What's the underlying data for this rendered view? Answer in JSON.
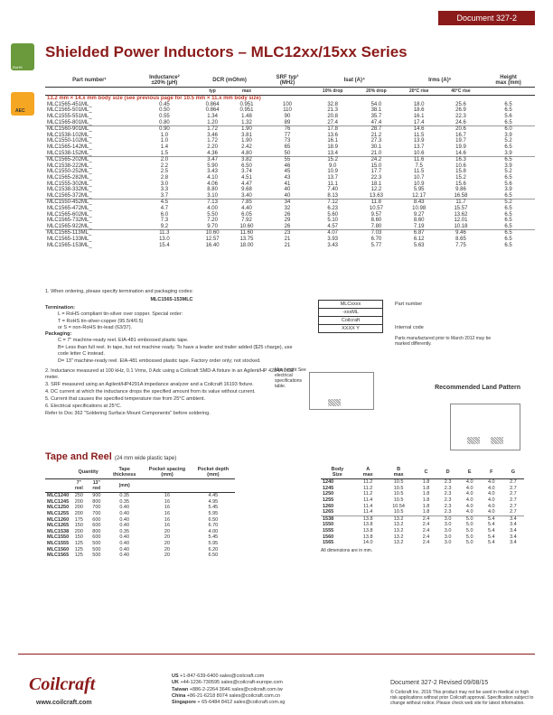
{
  "doc_header": "Document 327-2",
  "title": "Shielded Power Inductors – MLC12xx/15xx Series",
  "main_headers_top": [
    "Part number¹",
    "Inductance²\n±20% (µH)",
    "DCR (mOhm)",
    "SRF typ³\n(MHz)",
    "Isat (A)⁴",
    "Irms (A)⁵",
    "Height\nmax (mm)"
  ],
  "main_sub": [
    "",
    "",
    "typ",
    "max",
    "",
    "10% drop",
    "20% drop",
    "20°C rise",
    "40°C rise",
    ""
  ],
  "red_note": "13.2 mm × 14.x mm body size (see previous page for 10.5 mm × 11.x mm body size)",
  "rows": [
    [
      "MLC1565-451ML_",
      "0.45",
      "0.864",
      "0.951",
      "100",
      "32.8",
      "54.0",
      "18.0",
      "25.6",
      "6.5"
    ],
    [
      "MLC1565-501ML_",
      "0.50",
      "0.864",
      "0.951",
      "110",
      "21.3",
      "38.1",
      "18.6",
      "26.9",
      "6.5"
    ],
    [
      "MLC1555-551ML_",
      "0.55",
      "1.34",
      "1.48",
      "90",
      "20.8",
      "35.7",
      "16.1",
      "22.3",
      "5.6"
    ],
    [
      "MLC1565-801ML_",
      "0.80",
      "1.20",
      "1.32",
      "89",
      "27.4",
      "47.4",
      "17.4",
      "24.6",
      "6.5"
    ],
    [
      "MLC1560-901ML_",
      "0.90",
      "1.72",
      "1.90",
      "76",
      "17.8",
      "28.7",
      "14.6",
      "20.6",
      "6.0"
    ],
    [
      "MLC1538-102ML_",
      "1.0",
      "3.46",
      "3.81",
      "77",
      "13.6",
      "21.2",
      "11.5",
      "16.7",
      "3.9"
    ],
    [
      "MLC1550-102ML_",
      "1.0",
      "1.72",
      "1.90",
      "73",
      "16.1",
      "27.3",
      "13.9",
      "19.7",
      "5.2"
    ],
    [
      "MLC1565-142ML_",
      "1.4",
      "2.20",
      "2.42",
      "65",
      "18.9",
      "30.1",
      "13.7",
      "19.9",
      "6.5"
    ],
    [
      "MLC1538-152ML_",
      "1.5",
      "4.36",
      "4.80",
      "50",
      "13.4",
      "21.0",
      "10.6",
      "14.6",
      "3.9"
    ],
    [
      "MLC1565-202ML_",
      "2.0",
      "3.47",
      "3.82",
      "55",
      "15.2",
      "24.2",
      "11.6",
      "16.3",
      "6.5"
    ],
    [
      "MLC1538-222ML_",
      "2.2",
      "5.90",
      "6.50",
      "46",
      "9.0",
      "15.0",
      "7.5",
      "10.6",
      "3.9"
    ],
    [
      "MLC1550-252ML_",
      "2.5",
      "3.43",
      "3.74",
      "45",
      "10.9",
      "17.7",
      "11.5",
      "15.8",
      "5.2"
    ],
    [
      "MLC1565-282ML_",
      "2.8",
      "4.10",
      "4.51",
      "43",
      "13.7",
      "22.3",
      "10.7",
      "15.2",
      "6.5"
    ],
    [
      "MLC1555-302ML_",
      "3.0",
      "4.06",
      "4.47",
      "41",
      "11.1",
      "18.1",
      "10.9",
      "15.6",
      "5.6"
    ],
    [
      "MLC1538-332ML_",
      "3.3",
      "8.80",
      "9.68",
      "40",
      "7.40",
      "12.2",
      "5.95",
      "9.86",
      "3.9"
    ],
    [
      "MLC1565-372ML_",
      "3.7",
      "3.10",
      "3.40",
      "40",
      "8.13",
      "13.63",
      "12.17",
      "16.58",
      "6.5"
    ],
    [
      "MLC1550-452ML_",
      "4.5",
      "7.13",
      "7.85",
      "34",
      "7.12",
      "11.8",
      "8.43",
      "11.7",
      "5.2"
    ],
    [
      "MLC1565-472ML_",
      "4.7",
      "4.00",
      "4.40",
      "32",
      "6.23",
      "10.57",
      "10.98",
      "15.57",
      "6.5"
    ],
    [
      "MLC1565-602ML_",
      "6.0",
      "5.50",
      "6.05",
      "26",
      "5.60",
      "9.57",
      "9.27",
      "13.62",
      "6.5"
    ],
    [
      "MLC1565-732ML_",
      "7.3",
      "7.20",
      "7.92",
      "29",
      "5.10",
      "8.60",
      "8.60",
      "12.01",
      "6.5"
    ],
    [
      "MLC1565-922ML_",
      "9.2",
      "9.70",
      "10.60",
      "26",
      "4.57",
      "7.80",
      "7.19",
      "10.18",
      "6.5"
    ],
    [
      "MLC1565-113ML_",
      "11.3",
      "10.60",
      "11.60",
      "23",
      "4.07",
      "7.03",
      "6.87",
      "9.46",
      "6.5"
    ],
    [
      "MLC1565-133ML_",
      "13.0",
      "12.57",
      "13.75",
      "21",
      "3.93",
      "6.70",
      "6.12",
      "8.65",
      "6.5"
    ],
    [
      "MLC1565-153ML_",
      "15.4",
      "16.40",
      "18.00",
      "21",
      "3.43",
      "5.77",
      "5.63",
      "7.75",
      "6.5"
    ]
  ],
  "group_breaks": [
    4,
    9,
    16,
    21
  ],
  "notes_lead": "1. When ordering, please specify termination and packaging codes:",
  "notes_code": "MLC1565-153MLC",
  "term_label": "Termination:",
  "term_items": [
    "L = RoHS compliant tin-silver over copper.\nSpecial order:",
    "T = RoHS tin-silver-copper (95.5/4/0.5)",
    "or S = non-RoHS tin-lead (63/37)."
  ],
  "pack_label": "Packaging:",
  "pack_items": [
    "C = 7\" machine-ready reel. EIA-481 embossed plastic tape.",
    "B= Less than full reel. In tape, but not machine ready. To have a leader and trailer added ($25 charge), use code letter C instead.",
    "D= 13\" machine-ready reel. EIA-481 embossed plastic tape. Factory order only; not stocked."
  ],
  "notes_rest": [
    "2. Inductance measured at 100 kHz, 0.1 Vrms, 0 Adc using a Coilcraft SMD-A fixture in an Agilent/HP 4284A LCR meter.",
    "3. SRF measured using an Agilent/HP4291A impedance analyzer and a Coilcraft 16193 fixture.",
    "4. DC current at which the inductance drops the specified amount from its value without current.",
    "5. Current that causes the specified temperature rise from 25°C ambient.",
    "6. Electrical specifications at 25°C.",
    "Refer to Doc 362 \"Soldering Surface Mount Components\" before soldering."
  ],
  "tape_title": "Tape and Reel",
  "tape_sub": "(24 mm wide plastic tape)",
  "tape_headers_top": [
    "",
    "Quantity",
    "Tape thickness",
    "Pocket spacing (mm)",
    "Pocket depth (mm)"
  ],
  "tape_headers_sub": [
    "",
    "7\" reel",
    "13\" reel",
    "(mm)",
    "",
    ""
  ],
  "tape_rows": [
    [
      "MLC1240",
      "250",
      "900",
      "0.35",
      "16",
      "4.45"
    ],
    [
      "MLC1245",
      "200",
      "800",
      "0.35",
      "16",
      "4.95"
    ],
    [
      "MLC1250",
      "200",
      "700",
      "0.40",
      "16",
      "5.45"
    ],
    [
      "MLC1255",
      "200",
      "700",
      "0.40",
      "16",
      "5.95"
    ],
    [
      "MLC1260",
      "175",
      "600",
      "0.40",
      "16",
      "6.50"
    ],
    [
      "MLC1265",
      "150",
      "600",
      "0.40",
      "16",
      "6.70"
    ],
    [
      "MLC1538",
      "200",
      "800",
      "0.35",
      "20",
      "4.00"
    ],
    [
      "MLC1550",
      "150",
      "600",
      "0.40",
      "20",
      "5.45"
    ],
    [
      "MLC1555",
      "125",
      "500",
      "0.40",
      "20",
      "5.95"
    ],
    [
      "MLC1560",
      "125",
      "500",
      "0.40",
      "20",
      "6.20"
    ],
    [
      "MLC1565",
      "125",
      "500",
      "0.40",
      "20",
      "6.50"
    ]
  ],
  "body_headers": [
    "Body\nSize",
    "A\nmax",
    "B\nmax",
    "C",
    "D",
    "E",
    "F",
    "G"
  ],
  "body_rows": [
    [
      "1240",
      "11.2",
      "10.5",
      "1.8",
      "2.3",
      "4.0",
      "4.0",
      "2.7"
    ],
    [
      "1245",
      "11.2",
      "10.5",
      "1.8",
      "2.3",
      "4.0",
      "4.0",
      "2.7"
    ],
    [
      "1250",
      "11.2",
      "10.5",
      "1.8",
      "2.3",
      "4.0",
      "4.0",
      "2.7"
    ],
    [
      "1255",
      "11.4",
      "10.5",
      "1.8",
      "2.3",
      "4.0",
      "4.0",
      "2.7"
    ],
    [
      "1260",
      "11.4",
      "10.54",
      "1.8",
      "2.3",
      "4.0",
      "4.0",
      "2.7"
    ],
    [
      "1265",
      "11.4",
      "10.5",
      "1.8",
      "2.3",
      "4.0",
      "4.0",
      "2.7"
    ],
    [
      "1538",
      "13.8",
      "13.2",
      "2.4",
      "3.0",
      "5.0",
      "5.4",
      "3.4"
    ],
    [
      "1550",
      "13.8",
      "13.2",
      "2.4",
      "3.0",
      "5.0",
      "5.4",
      "3.4"
    ],
    [
      "1555",
      "13.8",
      "13.2",
      "2.4",
      "3.0",
      "5.0",
      "5.4",
      "3.4"
    ],
    [
      "1560",
      "13.8",
      "13.2",
      "2.4",
      "3.0",
      "5.0",
      "5.4",
      "3.4"
    ],
    [
      "1565",
      "14.0",
      "13.2",
      "2.4",
      "3.0",
      "5.0",
      "5.4",
      "3.4"
    ]
  ],
  "dim_note": "All dimensions are in mm.",
  "part_box": [
    "MLCxxxx",
    "-xxxML",
    "Coilcraft",
    "XXXX Y"
  ],
  "part_labels": {
    "pn": "Part number",
    "ic": "Internal code",
    "mfg": "Parts manufactured prior to March 2012 may be marked differently."
  },
  "land_title": "Recommended\nLand Pattern",
  "max_h": "Max height\nSee electrical\nspecifications\ntable.",
  "logo": "Coilcraft",
  "url": "www.coilcraft.com",
  "contacts": [
    [
      "US",
      "+1-847-639-6400  sales@coilcraft.com"
    ],
    [
      "UK",
      "+44-1236-730595  sales@coilcraft-europe.com"
    ],
    [
      "Taiwan",
      "+886-2-2264 3646  sales@coilcraft.com.tw"
    ],
    [
      "China",
      "+86-21-6218 8074  sales@coilcraft.com.cn"
    ],
    [
      "Singapore",
      "+ 65-6484 8412  sales@coilcraft.com.sg"
    ]
  ],
  "footer_doc": "Document 327-2    Revised 09/08/15",
  "footer_legal": "© Coilcraft Inc. 2016\nThis product may not be used in medical or high risk applications without prior Coilcraft approval. Specification subject to change without notice. Please check web site for latest information."
}
